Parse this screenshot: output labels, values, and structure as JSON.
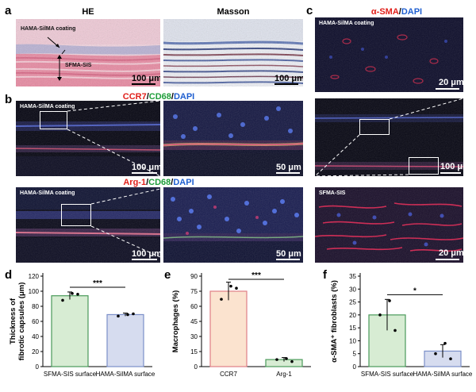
{
  "figure": {
    "panel_labels": [
      "a",
      "b",
      "c",
      "d",
      "e",
      "f"
    ],
    "a": {
      "headers": [
        "HE",
        "Masson"
      ],
      "he_labels": [
        "HAMA-SilMA coating",
        "SFMA-SIS"
      ],
      "scale_he": "100 μm",
      "scale_masson": "100 μm"
    },
    "b": {
      "title1": {
        "ccr7": "CCR7",
        "sep1": "/",
        "cd68": "CD68",
        "sep2": "/",
        "dapi": "DAPI"
      },
      "title2": {
        "arg1": "Arg-1",
        "sep1": "/",
        "cd68": "CD68",
        "sep2": "/",
        "dapi": "DAPI"
      },
      "row1_label": "HAMA-SilMA coating",
      "row2_label": "HAMA-SilMA coating",
      "scale_row1_left": "100 μm",
      "scale_row1_right": "50 μm",
      "scale_row2_left": "100 μm",
      "scale_row2_right": "50 μm"
    },
    "c": {
      "title": {
        "sma": "α-SMA",
        "sep": "/",
        "dapi": "DAPI"
      },
      "top_label": "HAMA-SilMA coating",
      "bottom_label": "SFMA-SIS",
      "scale_top": "20 μm",
      "scale_mid": "100 μm",
      "scale_bottom": "20 μm"
    },
    "colors": {
      "red": "#e0201b",
      "green": "#1e9e3a",
      "blue": "#1f5fd0",
      "bar_green_fill": "#d7ecd3",
      "bar_green_edge": "#4a9a5a",
      "bar_blue_fill": "#d6dcef",
      "bar_blue_edge": "#7b8fc9",
      "bar_orange_fill": "#fbe3cf",
      "bar_orange_edge": "#e07f86"
    }
  },
  "chart_data": [
    {
      "panel": "d",
      "type": "bar",
      "ylabel": "Thickness of fibrotic capsules (μm)",
      "ylim": [
        0,
        120
      ],
      "yticks": [
        0,
        20,
        40,
        60,
        80,
        100,
        120
      ],
      "categories": [
        "SFMA-SIS surface",
        "HAMA-SilMA surface"
      ],
      "values": [
        94,
        69
      ],
      "errors": [
        5,
        2
      ],
      "points": [
        [
          88,
          97,
          96
        ],
        [
          67,
          69,
          70
        ]
      ],
      "significance": "***"
    },
    {
      "panel": "e",
      "type": "bar",
      "ylabel": "Macrophages (%)",
      "ylim": [
        0,
        90
      ],
      "yticks": [
        0,
        15,
        30,
        45,
        60,
        75,
        90
      ],
      "categories": [
        "CCR7",
        "Arg-1"
      ],
      "values": [
        75,
        7
      ],
      "errors": [
        9,
        2
      ],
      "points": [
        [
          67,
          80,
          78
        ],
        [
          7,
          8,
          5
        ]
      ],
      "significance": "***"
    },
    {
      "panel": "f",
      "type": "bar",
      "ylabel": "α-SMA⁺ fibroblasts (%)",
      "ylim": [
        0,
        35
      ],
      "yticks": [
        0,
        5,
        10,
        15,
        20,
        25,
        30,
        35
      ],
      "categories": [
        "SFMA-SIS surface",
        "HAMA-SilMA surface"
      ],
      "values": [
        20,
        6
      ],
      "errors": [
        6,
        2.5
      ],
      "points": [
        [
          20,
          25.5,
          14
        ],
        [
          5,
          9,
          3
        ]
      ],
      "significance": "*"
    }
  ]
}
